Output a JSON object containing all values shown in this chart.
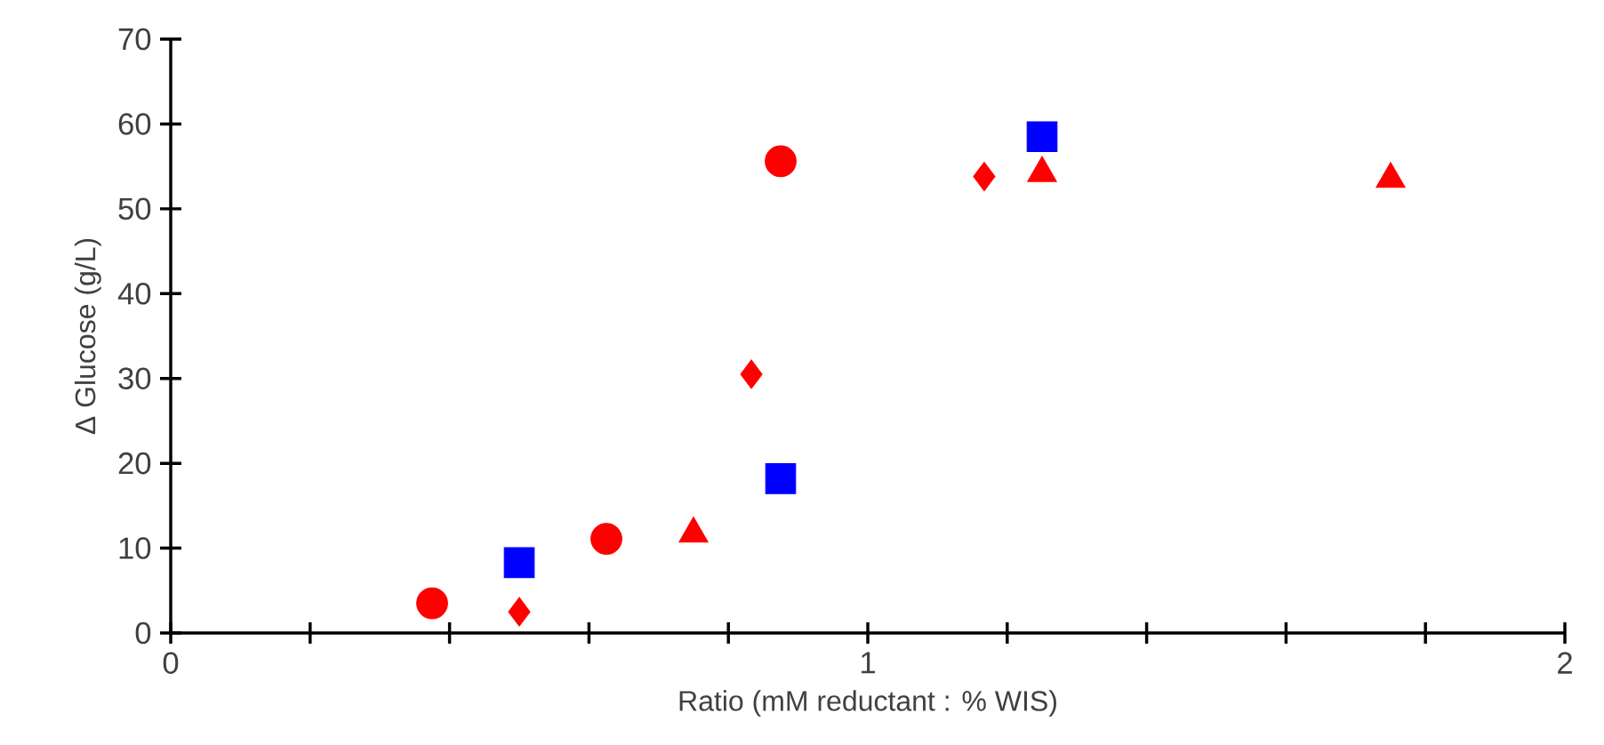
{
  "chart_data": {
    "type": "scatter",
    "xlabel": "Ratio (mM reductant : % WIS)",
    "ylabel": "Δ Glucose (g/L)",
    "xlim": [
      0,
      2
    ],
    "ylim": [
      0,
      70
    ],
    "xticks": [
      0,
      {
        "value": 0.2,
        "label": null
      },
      {
        "value": 0.4,
        "label": null
      },
      {
        "value": 0.6,
        "label": null
      },
      {
        "value": 0.8,
        "label": null
      },
      1,
      {
        "value": 1.2,
        "label": null
      },
      {
        "value": 1.4,
        "label": null
      },
      {
        "value": 1.6,
        "label": null
      },
      {
        "value": 1.8,
        "label": null
      },
      2
    ],
    "yticks": [
      0,
      10,
      20,
      30,
      40,
      50,
      60,
      70
    ],
    "series": [
      {
        "color": "#ff0000",
        "marker": "circle",
        "x": [
          0.375,
          0.625,
          0.875
        ],
        "values": [
          3.5,
          11.1,
          55.6
        ]
      },
      {
        "color": "#ff0000",
        "marker": "diamond",
        "x": [
          0.5,
          0.833,
          1.167
        ],
        "values": [
          2.5,
          30.5,
          53.8
        ]
      },
      {
        "color": "#ff0000",
        "marker": "triangle",
        "x": [
          0.75,
          1.25,
          1.75
        ],
        "values": [
          11.7,
          54.2,
          53.5
        ]
      },
      {
        "color": "#0000ff",
        "marker": "square",
        "x": [
          0.5,
          0.875,
          1.25
        ],
        "values": [
          8.3,
          18.2,
          58.5
        ]
      }
    ]
  }
}
